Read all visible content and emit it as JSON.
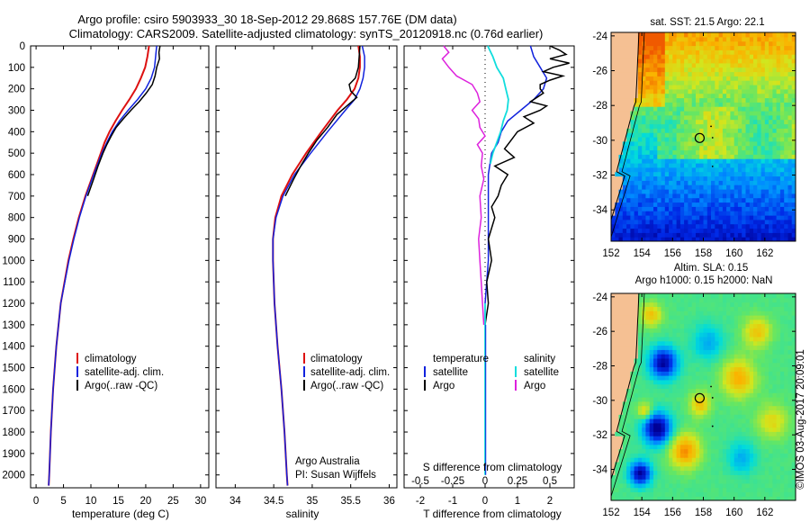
{
  "title": {
    "line1": "Argo profile: csiro 5903933_30 18-Sep-2012 29.868S 157.76E (DM data)",
    "line2": "Climatology: CARS2009. Satellite-adjusted climatology: synTS_20120918.nc (0.76d earlier)"
  },
  "depth_ticks": [
    0,
    100,
    200,
    300,
    400,
    500,
    600,
    700,
    800,
    900,
    1000,
    1100,
    1200,
    1300,
    1400,
    1500,
    1600,
    1700,
    1800,
    1900,
    2000
  ],
  "colors": {
    "climatology": "#dd1111",
    "satellite": "#1122dd",
    "argo": "#000000",
    "sat_salinity": "#11dddd",
    "argo_salinity": "#dd22dd"
  },
  "chart_data": [
    {
      "type": "line",
      "panel": "temperature",
      "xlabel": "temperature (deg C)",
      "ylabel": "",
      "xlim": [
        -1,
        31.5
      ],
      "ylim": [
        2060,
        0
      ],
      "xticks": [
        0,
        5,
        10,
        15,
        20,
        25,
        30
      ],
      "legend": [
        "climatology",
        "satellite-adj. clim.",
        "Argo(..raw -QC)"
      ],
      "series": [
        {
          "name": "climatology",
          "depth": [
            0,
            50,
            100,
            150,
            200,
            250,
            300,
            350,
            400,
            450,
            500,
            600,
            700,
            800,
            900,
            1000,
            1200,
            1400,
            1600,
            1800,
            2000,
            2050
          ],
          "values": [
            20.6,
            20.3,
            19.9,
            19.1,
            18.2,
            17.0,
            15.7,
            14.5,
            13.4,
            12.5,
            11.8,
            10.4,
            9.0,
            7.8,
            6.8,
            5.9,
            4.5,
            3.7,
            3.1,
            2.7,
            2.4,
            2.3
          ]
        },
        {
          "name": "satellite-adj. clim.",
          "depth": [
            0,
            50,
            100,
            150,
            200,
            250,
            300,
            350,
            400,
            450,
            500,
            600,
            700,
            800,
            900,
            1000,
            1200,
            1400,
            1600,
            1800,
            2000,
            2050
          ],
          "values": [
            22.0,
            21.8,
            21.6,
            21.0,
            20.0,
            18.5,
            16.8,
            15.2,
            13.9,
            12.9,
            12.0,
            10.5,
            9.1,
            7.9,
            6.9,
            6.0,
            4.5,
            3.7,
            3.1,
            2.7,
            2.4,
            2.3
          ]
        },
        {
          "name": "Argo(..raw -QC)",
          "depth": [
            0,
            30,
            60,
            100,
            140,
            180,
            220,
            260,
            300,
            340,
            380,
            420,
            460,
            500,
            560,
            620,
            700
          ],
          "values": [
            22.6,
            22.4,
            22.5,
            22.0,
            21.7,
            21.2,
            20.1,
            18.8,
            17.3,
            15.9,
            14.6,
            13.7,
            12.9,
            12.2,
            11.3,
            10.5,
            9.4
          ]
        }
      ]
    },
    {
      "type": "line",
      "panel": "salinity",
      "xlabel": "salinity",
      "xlim": [
        33.75,
        36.1
      ],
      "ylim": [
        2060,
        0
      ],
      "xticks": [
        34,
        34.5,
        35,
        35.5,
        36
      ],
      "legend": [
        "climatology",
        "satellite-adj. clim.",
        "Argo(..raw -QC)"
      ],
      "annotation": [
        "Argo Australia",
        "PI: Susan Wijffels"
      ],
      "series": [
        {
          "name": "climatology",
          "depth": [
            0,
            50,
            100,
            150,
            200,
            250,
            300,
            400,
            500,
            600,
            700,
            800,
            900,
            1000,
            1200,
            1400,
            1600,
            1800,
            2000,
            2050
          ],
          "values": [
            35.6,
            35.62,
            35.62,
            35.6,
            35.55,
            35.45,
            35.33,
            35.12,
            34.92,
            34.74,
            34.6,
            34.52,
            34.49,
            34.49,
            34.51,
            34.55,
            34.6,
            34.64,
            34.67,
            34.68
          ]
        },
        {
          "name": "satellite-adj. clim.",
          "depth": [
            0,
            50,
            100,
            150,
            200,
            250,
            300,
            400,
            500,
            600,
            700,
            800,
            900,
            1000,
            1200,
            1400,
            1600,
            1800,
            2000,
            2050
          ],
          "values": [
            35.65,
            35.68,
            35.68,
            35.66,
            35.62,
            35.55,
            35.43,
            35.2,
            34.98,
            34.77,
            34.62,
            34.53,
            34.49,
            34.49,
            34.51,
            34.55,
            34.6,
            34.64,
            34.67,
            34.68
          ]
        },
        {
          "name": "Argo(..raw -QC)",
          "depth": [
            0,
            50,
            100,
            150,
            180,
            210,
            240,
            280,
            320,
            380,
            440,
            500,
            560,
            620,
            700
          ],
          "values": [
            35.62,
            35.61,
            35.6,
            35.56,
            35.48,
            35.5,
            35.58,
            35.45,
            35.32,
            35.2,
            35.06,
            34.95,
            34.85,
            34.76,
            34.65
          ]
        }
      ]
    },
    {
      "type": "line",
      "panel": "difference",
      "xlabel": "T difference from climatology",
      "xlabel_top": "S difference from climatology",
      "xlim": [
        -2.5,
        2.75
      ],
      "ylim": [
        2060,
        0
      ],
      "xticks_T": [
        -2,
        -1,
        0,
        1,
        2
      ],
      "xticks_S_labels": [
        "-0.5",
        "-0.25",
        "0",
        "0.25",
        "0.5"
      ],
      "legend_temperature": [
        "satellite",
        "Argo"
      ],
      "legend_salinity": [
        "satellite",
        "Argo"
      ],
      "legend_temperature_title": "temperature",
      "legend_salinity_title": "salinity",
      "series": [
        {
          "name": "T satellite",
          "depth": [
            0,
            50,
            100,
            150,
            200,
            250,
            300,
            350,
            400,
            450,
            500,
            600,
            700,
            800,
            900,
            1000,
            1100,
            1200
          ],
          "values": [
            1.4,
            1.5,
            1.7,
            1.9,
            1.8,
            1.5,
            1.1,
            0.7,
            0.5,
            0.4,
            0.2,
            0.1,
            0.1,
            0.1,
            0.1,
            0.1,
            0.05,
            0.0
          ]
        },
        {
          "name": "T Argo",
          "depth": [
            0,
            20,
            40,
            60,
            80,
            100,
            120,
            140,
            160,
            180,
            200,
            220,
            240,
            260,
            280,
            300,
            330,
            360,
            400,
            440,
            480,
            520,
            560,
            600,
            650,
            700,
            750,
            800,
            900,
            1000,
            1100,
            1200,
            1300
          ],
          "values": [
            2.0,
            2.3,
            2.5,
            2.0,
            2.6,
            2.1,
            1.8,
            2.4,
            2.0,
            1.7,
            1.7,
            1.8,
            1.6,
            1.4,
            1.9,
            1.7,
            1.2,
            1.5,
            1.0,
            0.8,
            0.6,
            0.9,
            0.3,
            0.7,
            0.5,
            0.4,
            0.2,
            0.3,
            0.1,
            0.2,
            0.05,
            0.1,
            0.0
          ]
        },
        {
          "name": "S satellite",
          "depth": [
            0,
            50,
            100,
            150,
            200,
            250,
            300,
            350,
            400,
            450,
            500,
            550
          ],
          "values": [
            0.02,
            0.06,
            0.09,
            0.14,
            0.16,
            0.18,
            0.17,
            0.14,
            0.12,
            0.09,
            0.06,
            0.04
          ]
        },
        {
          "name": "S Argo",
          "depth": [
            0,
            30,
            60,
            100,
            140,
            180,
            220,
            260,
            300,
            340,
            380,
            420,
            460,
            500,
            560,
            620,
            700,
            800,
            900,
            1000,
            1100,
            1200,
            1300
          ],
          "values": [
            -0.32,
            -0.28,
            -0.33,
            -0.28,
            -0.22,
            -0.1,
            -0.06,
            -0.04,
            -0.1,
            -0.05,
            -0.04,
            0.0,
            -0.06,
            -0.02,
            -0.03,
            -0.01,
            -0.04,
            -0.03,
            -0.05,
            -0.04,
            -0.03,
            -0.02,
            -0.01
          ]
        }
      ]
    },
    {
      "type": "heatmap",
      "panel": "sst_map",
      "title": "sat. SST: 21.5  Argo: 22.1",
      "xlim": [
        152,
        164
      ],
      "ylim": [
        -35.8,
        -23.8
      ],
      "xticks": [
        152,
        154,
        156,
        158,
        160,
        162
      ],
      "yticks": [
        -24,
        -26,
        -28,
        -30,
        -32,
        -34
      ],
      "argo_position": {
        "lon": 157.76,
        "lat": -29.868
      }
    },
    {
      "type": "heatmap",
      "panel": "sla_map",
      "title_line1": "Altim. SLA: 0.15",
      "title_line2": "Argo h1000: 0.15 h2000: NaN",
      "xlim": [
        152,
        164
      ],
      "ylim": [
        -35.8,
        -23.8
      ],
      "xticks": [
        152,
        154,
        156,
        158,
        160,
        162
      ],
      "yticks": [
        -24,
        -26,
        -28,
        -30,
        -32,
        -34
      ],
      "argo_position": {
        "lon": 157.76,
        "lat": -29.868
      }
    }
  ],
  "watermark": "©IMOS 03-Aug-2017 20:09:01"
}
